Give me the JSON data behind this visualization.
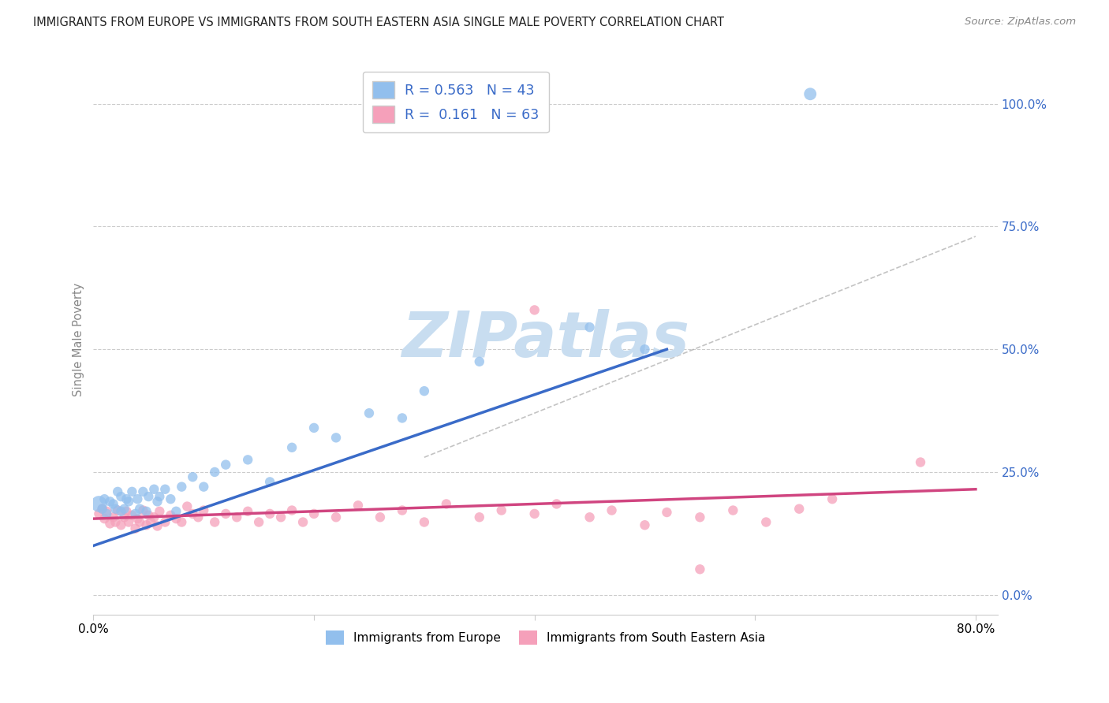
{
  "title": "IMMIGRANTS FROM EUROPE VS IMMIGRANTS FROM SOUTH EASTERN ASIA SINGLE MALE POVERTY CORRELATION CHART",
  "source": "Source: ZipAtlas.com",
  "ylabel": "Single Male Poverty",
  "ytick_labels": [
    "0.0%",
    "25.0%",
    "50.0%",
    "75.0%",
    "100.0%"
  ],
  "ytick_vals": [
    0.0,
    0.25,
    0.5,
    0.75,
    1.0
  ],
  "xtick_labels": [
    "0.0%",
    "80.0%"
  ],
  "xtick_vals": [
    0.0,
    0.8
  ],
  "xtick_minor": [
    0.2,
    0.4,
    0.6
  ],
  "xlim": [
    0.0,
    0.82
  ],
  "ylim": [
    -0.04,
    1.08
  ],
  "legend_label1": "Immigrants from Europe",
  "legend_label2": "Immigrants from South Eastern Asia",
  "R1": "0.563",
  "N1": "43",
  "R2": "0.161",
  "N2": "63",
  "color_blue": "#92bfed",
  "color_pink": "#f5a0ba",
  "line_color_blue": "#3a6bc8",
  "line_color_pink": "#d04580",
  "grid_color": "#cccccc",
  "europe_x": [
    0.005,
    0.008,
    0.01,
    0.012,
    0.015,
    0.018,
    0.02,
    0.022,
    0.025,
    0.025,
    0.028,
    0.03,
    0.032,
    0.035,
    0.038,
    0.04,
    0.042,
    0.045,
    0.048,
    0.05,
    0.055,
    0.058,
    0.06,
    0.065,
    0.07,
    0.075,
    0.08,
    0.09,
    0.1,
    0.11,
    0.12,
    0.14,
    0.16,
    0.18,
    0.2,
    0.22,
    0.25,
    0.28,
    0.3,
    0.35,
    0.45,
    0.5,
    0.65
  ],
  "europe_y": [
    0.185,
    0.175,
    0.195,
    0.165,
    0.19,
    0.185,
    0.175,
    0.21,
    0.17,
    0.2,
    0.175,
    0.195,
    0.19,
    0.21,
    0.165,
    0.195,
    0.175,
    0.21,
    0.17,
    0.2,
    0.215,
    0.19,
    0.2,
    0.215,
    0.195,
    0.17,
    0.22,
    0.24,
    0.22,
    0.25,
    0.265,
    0.275,
    0.23,
    0.3,
    0.34,
    0.32,
    0.37,
    0.36,
    0.415,
    0.475,
    0.545,
    0.5,
    1.02
  ],
  "europe_sizes": [
    220,
    80,
    80,
    80,
    80,
    80,
    80,
    80,
    80,
    80,
    80,
    80,
    80,
    80,
    80,
    80,
    80,
    80,
    80,
    80,
    80,
    80,
    80,
    80,
    80,
    80,
    80,
    80,
    80,
    80,
    80,
    80,
    80,
    80,
    80,
    80,
    80,
    80,
    80,
    80,
    80,
    80,
    130
  ],
  "sea_x": [
    0.005,
    0.008,
    0.01,
    0.012,
    0.015,
    0.018,
    0.02,
    0.022,
    0.025,
    0.028,
    0.03,
    0.032,
    0.035,
    0.038,
    0.04,
    0.042,
    0.045,
    0.048,
    0.05,
    0.052,
    0.055,
    0.058,
    0.06,
    0.065,
    0.07,
    0.075,
    0.08,
    0.085,
    0.09,
    0.095,
    0.1,
    0.11,
    0.12,
    0.13,
    0.14,
    0.15,
    0.16,
    0.17,
    0.18,
    0.19,
    0.2,
    0.22,
    0.24,
    0.26,
    0.28,
    0.3,
    0.32,
    0.35,
    0.37,
    0.4,
    0.42,
    0.45,
    0.47,
    0.5,
    0.52,
    0.55,
    0.58,
    0.61,
    0.64,
    0.67,
    0.4,
    0.55,
    0.75
  ],
  "sea_y": [
    0.165,
    0.175,
    0.155,
    0.17,
    0.145,
    0.158,
    0.148,
    0.172,
    0.142,
    0.158,
    0.17,
    0.148,
    0.162,
    0.135,
    0.155,
    0.148,
    0.172,
    0.142,
    0.162,
    0.148,
    0.158,
    0.14,
    0.17,
    0.148,
    0.162,
    0.155,
    0.148,
    0.18,
    0.165,
    0.158,
    0.172,
    0.148,
    0.165,
    0.158,
    0.17,
    0.148,
    0.165,
    0.158,
    0.172,
    0.148,
    0.165,
    0.158,
    0.182,
    0.158,
    0.172,
    0.148,
    0.185,
    0.158,
    0.172,
    0.165,
    0.185,
    0.158,
    0.172,
    0.142,
    0.168,
    0.158,
    0.172,
    0.148,
    0.175,
    0.195,
    0.58,
    0.052,
    0.27
  ],
  "sea_sizes": [
    80,
    80,
    80,
    80,
    80,
    80,
    80,
    80,
    80,
    80,
    80,
    80,
    80,
    80,
    80,
    80,
    80,
    80,
    80,
    80,
    80,
    80,
    80,
    80,
    80,
    80,
    80,
    80,
    80,
    80,
    80,
    80,
    80,
    80,
    80,
    80,
    80,
    80,
    80,
    80,
    80,
    80,
    80,
    80,
    80,
    80,
    80,
    80,
    80,
    80,
    80,
    80,
    80,
    80,
    80,
    80,
    80,
    80,
    80,
    80,
    80,
    80,
    80
  ],
  "blue_line_x": [
    0.0,
    0.52
  ],
  "blue_line_y": [
    0.1,
    0.5
  ],
  "pink_line_x": [
    0.0,
    0.8
  ],
  "pink_line_y": [
    0.155,
    0.215
  ],
  "dash_line_x": [
    0.3,
    0.8
  ],
  "dash_line_y": [
    0.28,
    0.73
  ]
}
